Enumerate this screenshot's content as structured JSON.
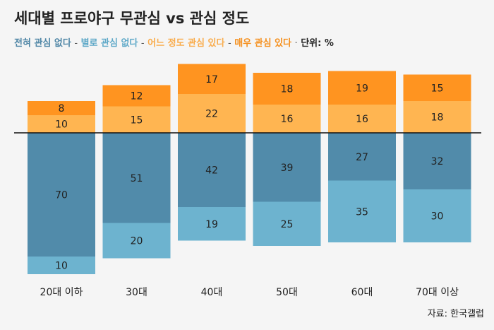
{
  "chart_data": {
    "type": "bar",
    "title": "세대별 프로야구 무관심 vs 관심 정도",
    "categories": [
      "20대 이하",
      "30대",
      "40대",
      "50대",
      "60대",
      "70대 이상"
    ],
    "series": [
      {
        "name": "전혀 관심 없다",
        "values": [
          70,
          51,
          42,
          39,
          27,
          32
        ],
        "color": "#518baa",
        "side": "below"
      },
      {
        "name": "별로 관심 없다",
        "values": [
          10,
          20,
          19,
          25,
          35,
          30
        ],
        "color": "#6db3cf",
        "side": "below"
      },
      {
        "name": "어느 정도 관심 있다",
        "values": [
          10,
          15,
          22,
          16,
          16,
          18
        ],
        "color": "#ffb551",
        "side": "above"
      },
      {
        "name": "매우 관심 있다",
        "values": [
          8,
          12,
          17,
          18,
          19,
          15
        ],
        "color": "#ff9420",
        "side": "above"
      }
    ],
    "unit_label": "단위: %",
    "source": "자료: 한국갤럽"
  },
  "legend": {
    "sep": "-",
    "dot": "·"
  }
}
